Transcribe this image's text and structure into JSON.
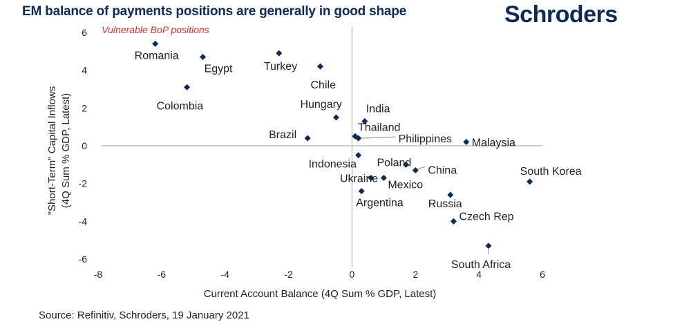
{
  "header": {
    "title": "EM balance of payments positions are generally in good shape",
    "brand": "Schroders"
  },
  "footer": {
    "source": "Source: Refinitiv, Schroders, 19 January 2021"
  },
  "chart_data": {
    "type": "scatter",
    "title": "EM balance of payments positions are generally in good shape",
    "xlabel": "Current Account Balance (4Q Sum % GDP, Latest)",
    "ylabel_lines": [
      "\"Short-Term\" Capital Inflows",
      "(4Q Sum % GDP, Latest)"
    ],
    "xlim": [
      -8,
      6
    ],
    "ylim": [
      -6,
      6
    ],
    "xticks": [
      -8,
      -6,
      -4,
      -2,
      0,
      2,
      4,
      6
    ],
    "yticks": [
      -6,
      -4,
      -2,
      0,
      2,
      4,
      6
    ],
    "annotation": "Vulnerable BoP positions",
    "marker_color": "#0d2a5a",
    "annotation_color": "#e03030",
    "points": [
      {
        "label": "Romania",
        "x": -6.2,
        "y": 5.4
      },
      {
        "label": "Egypt",
        "x": -4.7,
        "y": 4.7
      },
      {
        "label": "Colombia",
        "x": -5.2,
        "y": 3.1
      },
      {
        "label": "Turkey",
        "x": -2.3,
        "y": 4.9
      },
      {
        "label": "Chile",
        "x": -1.0,
        "y": 4.2
      },
      {
        "label": "Hungary",
        "x": -0.5,
        "y": 1.5
      },
      {
        "label": "India",
        "x": 0.4,
        "y": 1.3
      },
      {
        "label": "Thailand",
        "x": 0.1,
        "y": 0.5
      },
      {
        "label": "Brazil",
        "x": -1.4,
        "y": 0.4
      },
      {
        "label": "Philippines",
        "x": 0.2,
        "y": 0.4
      },
      {
        "label": "Malaysia",
        "x": 3.6,
        "y": 0.2
      },
      {
        "label": "Indonesia",
        "x": 0.2,
        "y": -0.5
      },
      {
        "label": "Poland",
        "x": 1.7,
        "y": -1.0
      },
      {
        "label": "China",
        "x": 2.0,
        "y": -1.3
      },
      {
        "label": "Ukraine",
        "x": 0.6,
        "y": -1.7
      },
      {
        "label": "Mexico",
        "x": 1.0,
        "y": -1.7
      },
      {
        "label": "Argentina",
        "x": 0.3,
        "y": -2.4
      },
      {
        "label": "Russia",
        "x": 3.1,
        "y": -2.6
      },
      {
        "label": "South Korea",
        "x": 5.6,
        "y": -1.9
      },
      {
        "label": "Czech Rep",
        "x": 3.2,
        "y": -4.0
      },
      {
        "label": "South Africa",
        "x": 4.3,
        "y": -5.3
      }
    ]
  }
}
